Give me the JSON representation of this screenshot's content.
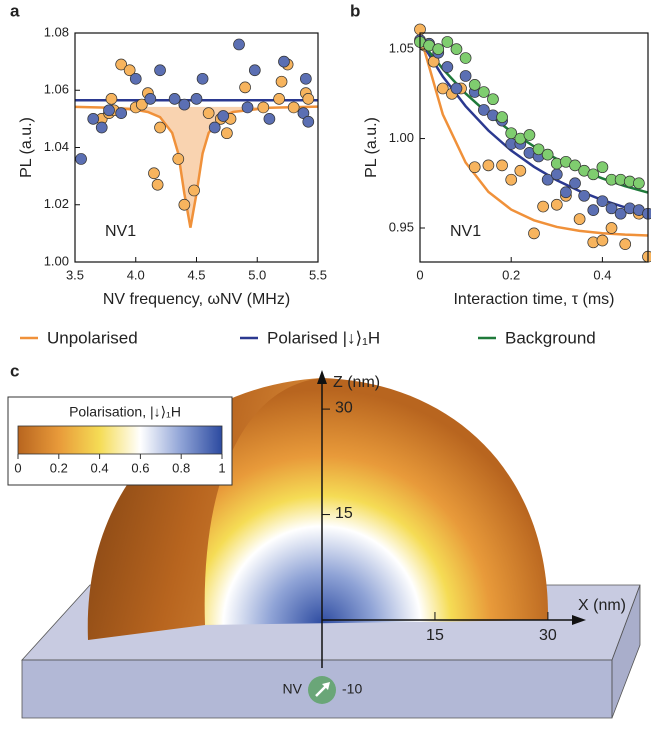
{
  "chart_data": [
    {
      "type": "scatter",
      "panel": "a",
      "ylabel": "PL (a.u.)",
      "xlabel": "NV frequency, ωNV (MHz)",
      "annotation": "NV1",
      "xlim": [
        3.5,
        5.5
      ],
      "xticks": [
        3.5,
        {
          "value": 4,
          "label": "4.0"
        },
        4.5,
        {
          "value": 5,
          "label": "5.0"
        },
        5.5
      ],
      "ylim": [
        1.0,
        1.08
      ],
      "yticks": [
        {
          "value": 1,
          "label": "1.00"
        },
        1.02,
        1.04,
        1.06,
        1.08
      ],
      "series": [
        {
          "style": "points",
          "color": "#f7b45e",
          "x": [
            3.72,
            3.78,
            3.8,
            3.82,
            3.88,
            3.95,
            4.0,
            4.05,
            4.1,
            4.15,
            4.18,
            4.2,
            4.35,
            4.4,
            4.48,
            4.6,
            4.7,
            4.75,
            4.78,
            4.9,
            5.05,
            5.18,
            5.2,
            5.25,
            5.3,
            5.4,
            5.42
          ],
          "values": [
            1.05,
            1.052,
            1.057,
            1.053,
            1.069,
            1.067,
            1.054,
            1.055,
            1.059,
            1.031,
            1.027,
            1.047,
            1.036,
            1.02,
            1.025,
            1.052,
            1.05,
            1.045,
            1.05,
            1.061,
            1.054,
            1.057,
            1.063,
            1.069,
            1.054,
            1.059,
            1.057
          ]
        },
        {
          "style": "points",
          "color": "#5b6fb3",
          "x": [
            3.55,
            3.65,
            3.72,
            3.78,
            3.88,
            4.0,
            4.12,
            4.2,
            4.32,
            4.4,
            4.5,
            4.55,
            4.65,
            4.72,
            4.85,
            4.92,
            4.98,
            5.1,
            5.22,
            5.38,
            5.4,
            5.42
          ],
          "values": [
            1.036,
            1.05,
            1.047,
            1.053,
            1.052,
            1.064,
            1.057,
            1.067,
            1.057,
            1.055,
            1.057,
            1.064,
            1.047,
            1.051,
            1.076,
            1.054,
            1.067,
            1.05,
            1.07,
            1.052,
            1.064,
            1.049
          ]
        },
        {
          "style": "line",
          "color": "#2b3990",
          "x": [
            3.5,
            5.5
          ],
          "values": [
            1.0565,
            1.0565
          ]
        },
        {
          "style": "line",
          "fill": true,
          "color": "#f0913a",
          "x": [
            3.5,
            3.8,
            4.0,
            4.1,
            4.2,
            4.3,
            4.35,
            4.4,
            4.45,
            4.5,
            4.55,
            4.6,
            4.7,
            4.8,
            5.1,
            5.5
          ],
          "values": [
            1.0542,
            1.0539,
            1.0532,
            1.0524,
            1.0506,
            1.0451,
            1.0379,
            1.0239,
            1.012,
            1.0239,
            1.0379,
            1.0451,
            1.0506,
            1.0524,
            1.0539,
            1.0543
          ]
        }
      ]
    },
    {
      "type": "scatter",
      "panel": "b",
      "ylabel": "PL (a.u.)",
      "xlabel": "Interaction time, τ (ms)",
      "annotation": "NV1",
      "xlim": [
        0,
        0.5
      ],
      "xticks": [
        0,
        0.2,
        0.4
      ],
      "ylim": [
        0.931,
        1.059
      ],
      "yticks": [
        0.95,
        {
          "value": 1,
          "label": "1.00"
        },
        1.05
      ],
      "series": [
        {
          "style": "points",
          "color": "#f7b45e",
          "x": [
            0,
            0.01,
            0.03,
            0.05,
            0.07,
            0.09,
            0.12,
            0.15,
            0.18,
            0.2,
            0.22,
            0.25,
            0.27,
            0.3,
            0.32,
            0.35,
            0.38,
            0.4,
            0.42,
            0.45,
            0.48,
            0.5
          ],
          "values": [
            1.061,
            1.052,
            1.043,
            1.028,
            1.025,
            1.028,
            0.984,
            0.985,
            0.985,
            0.977,
            0.982,
            0.947,
            0.962,
            0.963,
            0.968,
            0.955,
            0.942,
            0.943,
            0.95,
            0.941,
            0.958,
            0.934
          ]
        },
        {
          "style": "points",
          "color": "#5b6fb3",
          "x": [
            0,
            0.02,
            0.04,
            0.06,
            0.08,
            0.1,
            0.12,
            0.14,
            0.16,
            0.18,
            0.2,
            0.22,
            0.24,
            0.26,
            0.28,
            0.3,
            0.32,
            0.34,
            0.36,
            0.38,
            0.4,
            0.42,
            0.44,
            0.46,
            0.48,
            0.5
          ],
          "values": [
            1.055,
            1.053,
            1.048,
            1.04,
            1.028,
            1.035,
            1.026,
            1.016,
            1.013,
            1.01,
            0.997,
            0.997,
            0.992,
            0.99,
            0.977,
            0.98,
            0.97,
            0.975,
            0.968,
            0.96,
            0.965,
            0.961,
            0.958,
            0.961,
            0.96,
            0.958
          ]
        },
        {
          "style": "points",
          "color": "#7fcd6f",
          "x": [
            0,
            0.02,
            0.04,
            0.06,
            0.08,
            0.1,
            0.12,
            0.14,
            0.16,
            0.18,
            0.2,
            0.22,
            0.24,
            0.26,
            0.28,
            0.3,
            0.32,
            0.34,
            0.36,
            0.38,
            0.4,
            0.42,
            0.44,
            0.46,
            0.48
          ],
          "values": [
            1.054,
            1.052,
            1.05,
            1.054,
            1.05,
            1.045,
            1.03,
            1.026,
            1.022,
            1.012,
            1.003,
            1.0,
            1.002,
            0.994,
            0.991,
            0.986,
            0.987,
            0.985,
            0.982,
            0.98,
            0.984,
            0.977,
            0.977,
            0.976,
            0.975
          ]
        },
        {
          "style": "line",
          "color": "#f0913a",
          "x": [
            0,
            0.05,
            0.1,
            0.15,
            0.2,
            0.25,
            0.3,
            0.35,
            0.4,
            0.45,
            0.5
          ],
          "values": [
            1.058,
            1.0135,
            0.9866,
            0.9702,
            0.9603,
            0.9543,
            0.9506,
            0.9484,
            0.9471,
            0.9463,
            0.9458
          ]
        },
        {
          "style": "line",
          "color": "#2b3990",
          "x": [
            0,
            0.05,
            0.1,
            0.15,
            0.2,
            0.25,
            0.3,
            0.35,
            0.4,
            0.45,
            0.5
          ],
          "values": [
            1.055,
            1.0347,
            1.0181,
            1.0045,
            0.9933,
            0.9842,
            0.9767,
            0.9706,
            0.9656,
            0.9615,
            0.9582
          ]
        },
        {
          "style": "line",
          "color": "#1f7a3a",
          "x": [
            0,
            0.05,
            0.1,
            0.15,
            0.2,
            0.25,
            0.3,
            0.35,
            0.4,
            0.45,
            0.5
          ],
          "values": [
            1.055,
            1.0389,
            1.0252,
            1.0137,
            1.0039,
            0.9956,
            0.9886,
            0.9827,
            0.9777,
            0.9734,
            0.9698
          ]
        }
      ]
    }
  ],
  "legend": [
    {
      "name": "Unpolarised",
      "color": "#f0913a"
    },
    {
      "name": "Polarised |↓⟩₁H",
      "color": "#2b3990"
    },
    {
      "name": "Background",
      "color": "#1f7a3a"
    }
  ],
  "panel_c": {
    "panel": "c",
    "z_axis": {
      "label": "Z (nm)",
      "ticks": [
        30,
        15
      ]
    },
    "x_axis": {
      "label": "X (nm)",
      "ticks": [
        15,
        30
      ]
    },
    "nv": {
      "label": "NV",
      "depth": -10
    },
    "colorbar": {
      "title": "Polarisation, |↓⟩₁H",
      "ticks": [
        0,
        0.2,
        0.4,
        0.6,
        0.8,
        1
      ],
      "colors": [
        "#b8651f",
        "#e89a3a",
        "#f5dc55",
        "#ffffff",
        "#8fa3d6",
        "#2c4aa0"
      ]
    }
  }
}
